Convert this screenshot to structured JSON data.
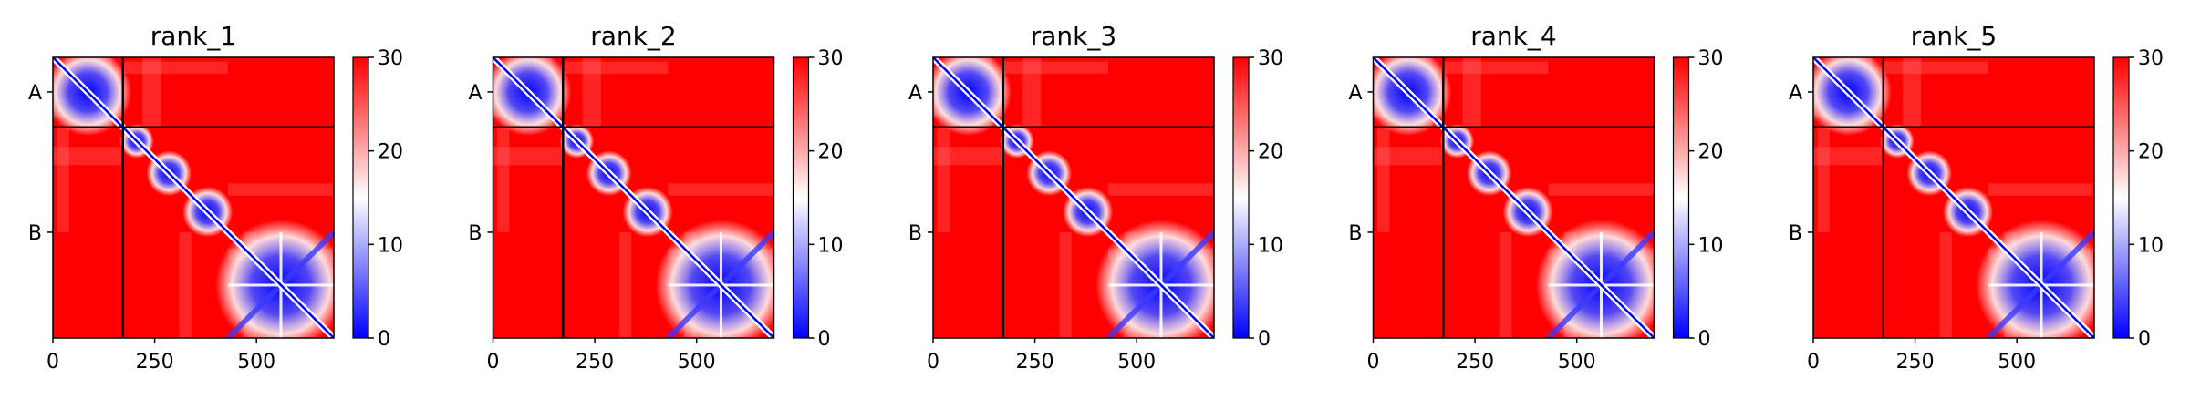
{
  "chart_data": [
    {
      "type": "heatmap",
      "title": "rank_1",
      "xticks": [
        0,
        250,
        500
      ],
      "xlim": [
        0,
        690
      ],
      "ylim": [
        690,
        0
      ],
      "row_labels": [
        {
          "label": "A",
          "at": 85
        },
        {
          "label": "B",
          "at": 430
        }
      ],
      "chain_boundary": 172,
      "colorbar": {
        "range": [
          0,
          30
        ],
        "ticks": [
          0,
          10,
          20,
          30
        ],
        "colormap": "bwr"
      },
      "domains": [
        [
          0,
          172
        ],
        [
          172,
          240
        ],
        [
          240,
          330
        ],
        [
          330,
          430
        ],
        [
          430,
          690
        ]
      ],
      "grid": false
    },
    {
      "type": "heatmap",
      "title": "rank_2",
      "xticks": [
        0,
        250,
        500
      ],
      "xlim": [
        0,
        690
      ],
      "ylim": [
        690,
        0
      ],
      "row_labels": [
        {
          "label": "A",
          "at": 85
        },
        {
          "label": "B",
          "at": 430
        }
      ],
      "chain_boundary": 172,
      "colorbar": {
        "range": [
          0,
          30
        ],
        "ticks": [
          0,
          10,
          20,
          30
        ],
        "colormap": "bwr"
      },
      "domains": [
        [
          0,
          172
        ],
        [
          172,
          240
        ],
        [
          240,
          330
        ],
        [
          330,
          430
        ],
        [
          430,
          690
        ]
      ],
      "grid": false
    },
    {
      "type": "heatmap",
      "title": "rank_3",
      "xticks": [
        0,
        250,
        500
      ],
      "xlim": [
        0,
        690
      ],
      "ylim": [
        690,
        0
      ],
      "row_labels": [
        {
          "label": "A",
          "at": 85
        },
        {
          "label": "B",
          "at": 430
        }
      ],
      "chain_boundary": 172,
      "colorbar": {
        "range": [
          0,
          30
        ],
        "ticks": [
          0,
          10,
          20,
          30
        ],
        "colormap": "bwr"
      },
      "domains": [
        [
          0,
          172
        ],
        [
          172,
          240
        ],
        [
          240,
          330
        ],
        [
          330,
          430
        ],
        [
          430,
          690
        ]
      ],
      "grid": false
    },
    {
      "type": "heatmap",
      "title": "rank_4",
      "xticks": [
        0,
        250,
        500
      ],
      "xlim": [
        0,
        690
      ],
      "ylim": [
        690,
        0
      ],
      "row_labels": [
        {
          "label": "A",
          "at": 85
        },
        {
          "label": "B",
          "at": 430
        }
      ],
      "chain_boundary": 172,
      "colorbar": {
        "range": [
          0,
          30
        ],
        "ticks": [
          0,
          10,
          20,
          30
        ],
        "colormap": "bwr"
      },
      "domains": [
        [
          0,
          172
        ],
        [
          172,
          240
        ],
        [
          240,
          330
        ],
        [
          330,
          430
        ],
        [
          430,
          690
        ]
      ],
      "grid": false
    },
    {
      "type": "heatmap",
      "title": "rank_5",
      "xticks": [
        0,
        250,
        500
      ],
      "xlim": [
        0,
        690
      ],
      "ylim": [
        690,
        0
      ],
      "row_labels": [
        {
          "label": "A",
          "at": 85
        },
        {
          "label": "B",
          "at": 430
        }
      ],
      "chain_boundary": 172,
      "colorbar": {
        "range": [
          0,
          30
        ],
        "ticks": [
          0,
          10,
          20,
          30
        ],
        "colormap": "bwr"
      },
      "domains": [
        [
          0,
          172
        ],
        [
          172,
          240
        ],
        [
          240,
          330
        ],
        [
          330,
          430
        ],
        [
          430,
          690
        ]
      ],
      "grid": false
    }
  ],
  "colors": {
    "low": "#0000ff",
    "mid": "#ffffff",
    "high": "#ff0000",
    "boundary_line": "#000000"
  }
}
